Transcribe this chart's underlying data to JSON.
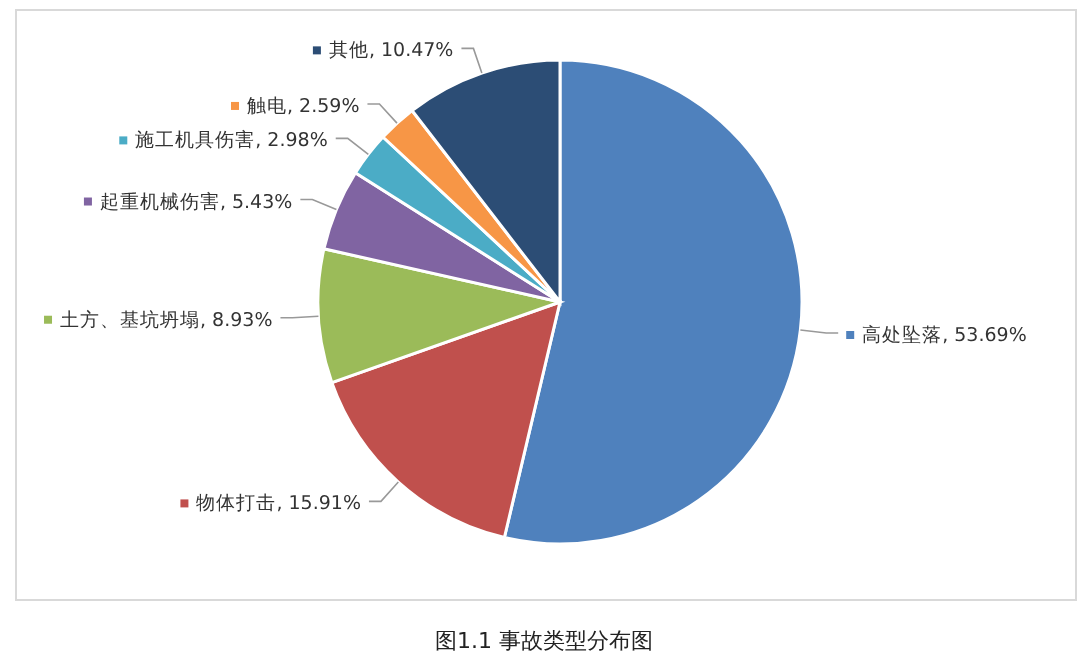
{
  "chart_data": {
    "type": "pie",
    "categories": [
      "高处坠落",
      "物体打击",
      "土方、基坑坍塌",
      "起重机械伤害",
      "施工机具伤害",
      "触电",
      "其他"
    ],
    "values": [
      53.69,
      15.91,
      8.93,
      5.43,
      2.98,
      2.59,
      10.47
    ],
    "value_labels": [
      "53.69%",
      "15.91%",
      "8.93%",
      "5.43%",
      "2.98%",
      "2.59%",
      "10.47%"
    ],
    "colors": [
      "#4f81bd",
      "#c0504d",
      "#9bbb59",
      "#8064a2",
      "#4bacc6",
      "#f79646",
      "#2c4d75"
    ],
    "legend": true,
    "annotations": [
      "图1.1 事故类型分布图"
    ]
  }
}
